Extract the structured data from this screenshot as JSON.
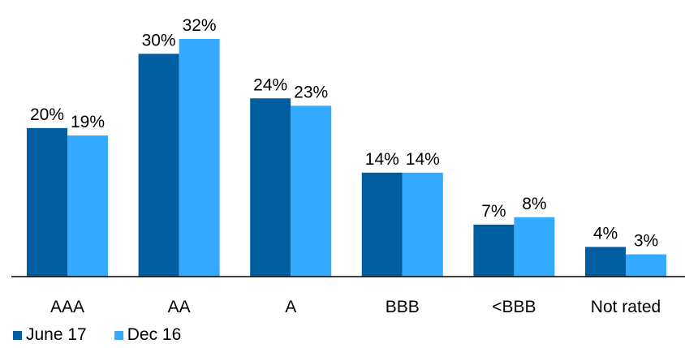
{
  "chart_data": {
    "type": "bar",
    "categories": [
      "AAA",
      "AA",
      "A",
      "BBB",
      "<BBB",
      "Not rated"
    ],
    "series": [
      {
        "name": "June 17",
        "values": [
          20,
          30,
          24,
          14,
          7,
          4
        ],
        "labels": [
          "20%",
          "30%",
          "24%",
          "14%",
          "7%",
          "4%"
        ],
        "color": "#005ea0"
      },
      {
        "name": "Dec 16",
        "values": [
          19,
          32,
          23,
          14,
          8,
          3
        ],
        "labels": [
          "19%",
          "32%",
          "23%",
          "14%",
          "8%",
          "3%"
        ],
        "color": "#33aaff"
      }
    ],
    "ylim": [
      0,
      34
    ],
    "grid": false,
    "legend": "bottom-left"
  }
}
